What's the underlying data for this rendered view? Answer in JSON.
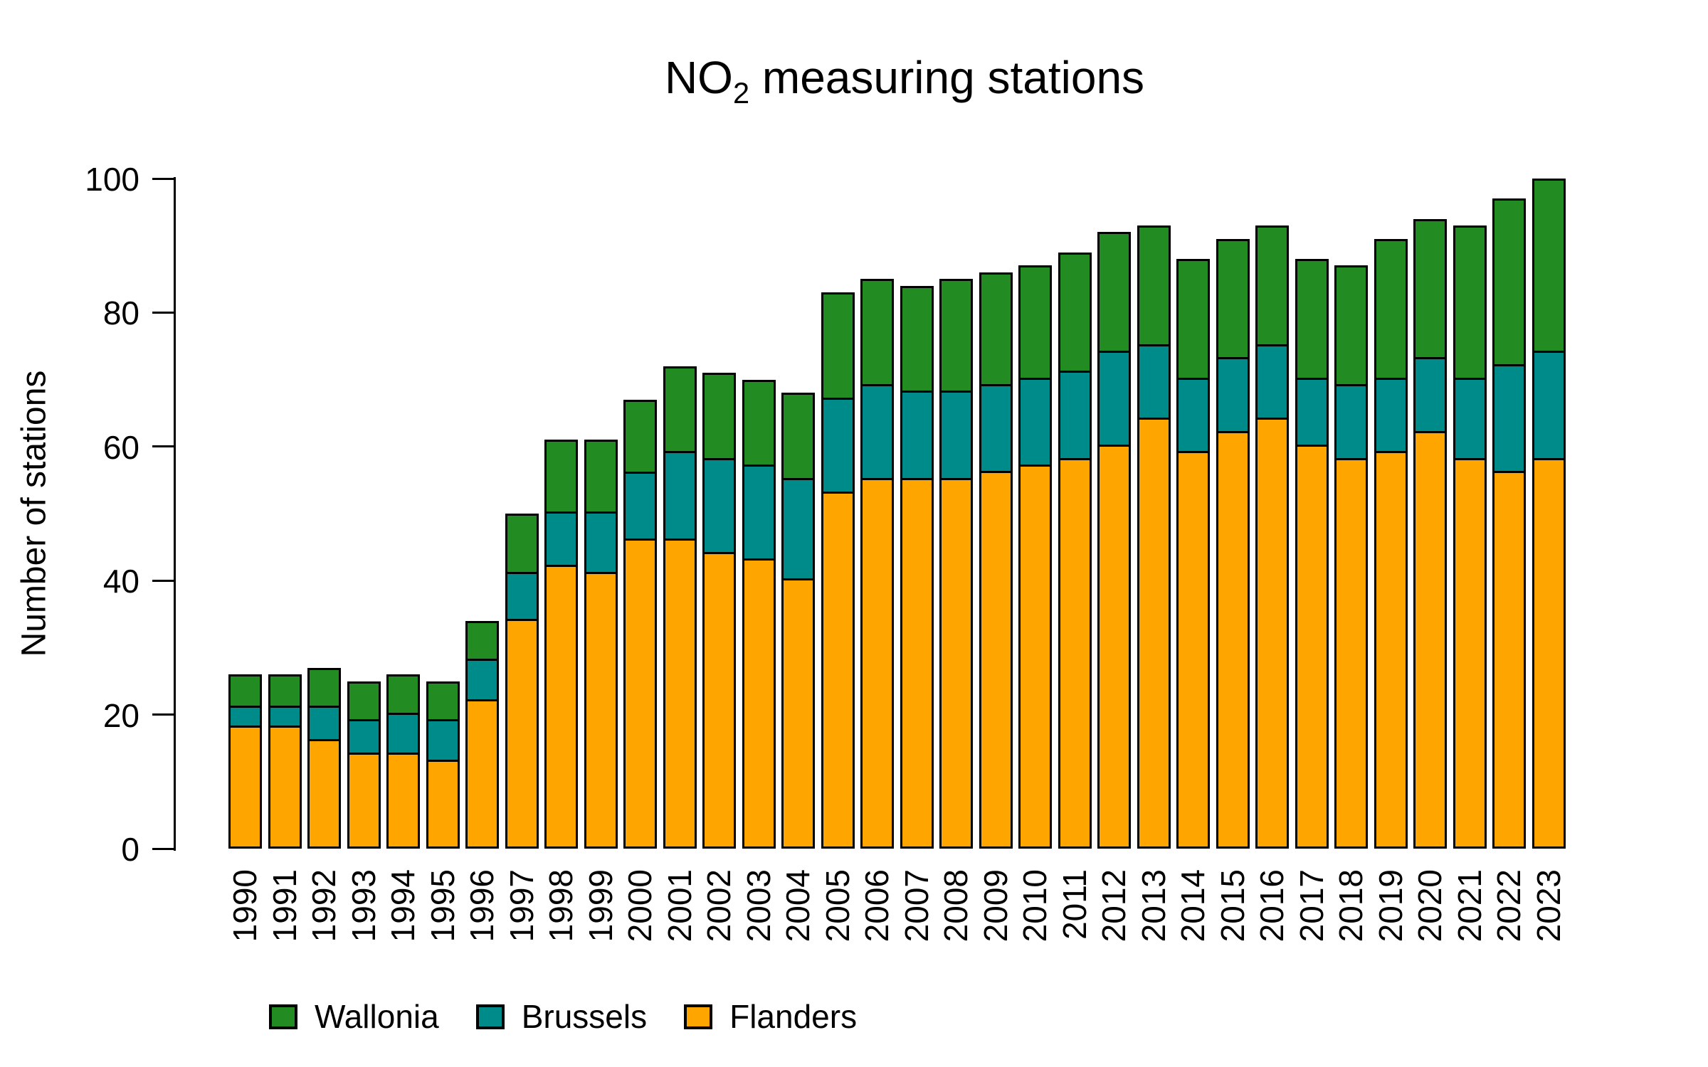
{
  "title": {
    "prefix": "NO",
    "subscript": "2",
    "suffix": " measuring stations"
  },
  "y_axis": {
    "label": "Number of stations",
    "ticks": [
      0,
      20,
      40,
      60,
      80,
      100
    ]
  },
  "legend": [
    {
      "label": "Wallonia",
      "color": "#228B22"
    },
    {
      "label": "Brussels",
      "color": "#008B8B"
    },
    {
      "label": "Flanders",
      "color": "#FFA500"
    }
  ],
  "chart_data": {
    "type": "bar",
    "stacked": true,
    "title": "NO2 measuring stations",
    "xlabel": "",
    "ylabel": "Number of stations",
    "ylim": [
      0,
      100
    ],
    "grid": false,
    "legend_position": "bottom",
    "bar_border_color": "#000000",
    "categories": [
      "1990",
      "1991",
      "1992",
      "1993",
      "1994",
      "1995",
      "1996",
      "1997",
      "1998",
      "1999",
      "2000",
      "2001",
      "2002",
      "2003",
      "2004",
      "2005",
      "2006",
      "2007",
      "2008",
      "2009",
      "2010",
      "2011",
      "2012",
      "2013",
      "2014",
      "2015",
      "2016",
      "2017",
      "2018",
      "2019",
      "2020",
      "2021",
      "2022",
      "2023"
    ],
    "series": [
      {
        "name": "Flanders",
        "color": "#FFA500",
        "stack_order": "bottom",
        "values": [
          18,
          18,
          16,
          14,
          14,
          13,
          22,
          34,
          42,
          41,
          46,
          46,
          44,
          43,
          40,
          53,
          55,
          55,
          55,
          56,
          57,
          58,
          60,
          64,
          59,
          62,
          64,
          60,
          58,
          59,
          62,
          58,
          56,
          58
        ]
      },
      {
        "name": "Brussels",
        "color": "#008B8B",
        "stack_order": "middle",
        "values": [
          3,
          3,
          5,
          5,
          6,
          6,
          6,
          7,
          8,
          9,
          10,
          13,
          14,
          14,
          15,
          14,
          14,
          13,
          13,
          13,
          13,
          13,
          14,
          11,
          11,
          11,
          11,
          10,
          11,
          11,
          11,
          12,
          16,
          16
        ]
      },
      {
        "name": "Wallonia",
        "color": "#228B22",
        "stack_order": "top",
        "values": [
          5,
          5,
          6,
          6,
          6,
          6,
          6,
          9,
          11,
          11,
          11,
          13,
          13,
          13,
          13,
          16,
          16,
          16,
          17,
          17,
          17,
          18,
          18,
          18,
          18,
          18,
          18,
          18,
          18,
          21,
          21,
          23,
          25,
          26
        ]
      }
    ],
    "totals": [
      26,
      26,
      27,
      25,
      26,
      25,
      34,
      50,
      61,
      61,
      67,
      72,
      71,
      70,
      68,
      83,
      85,
      84,
      85,
      86,
      87,
      89,
      92,
      93,
      88,
      91,
      93,
      88,
      87,
      91,
      94,
      93,
      97,
      100
    ]
  }
}
